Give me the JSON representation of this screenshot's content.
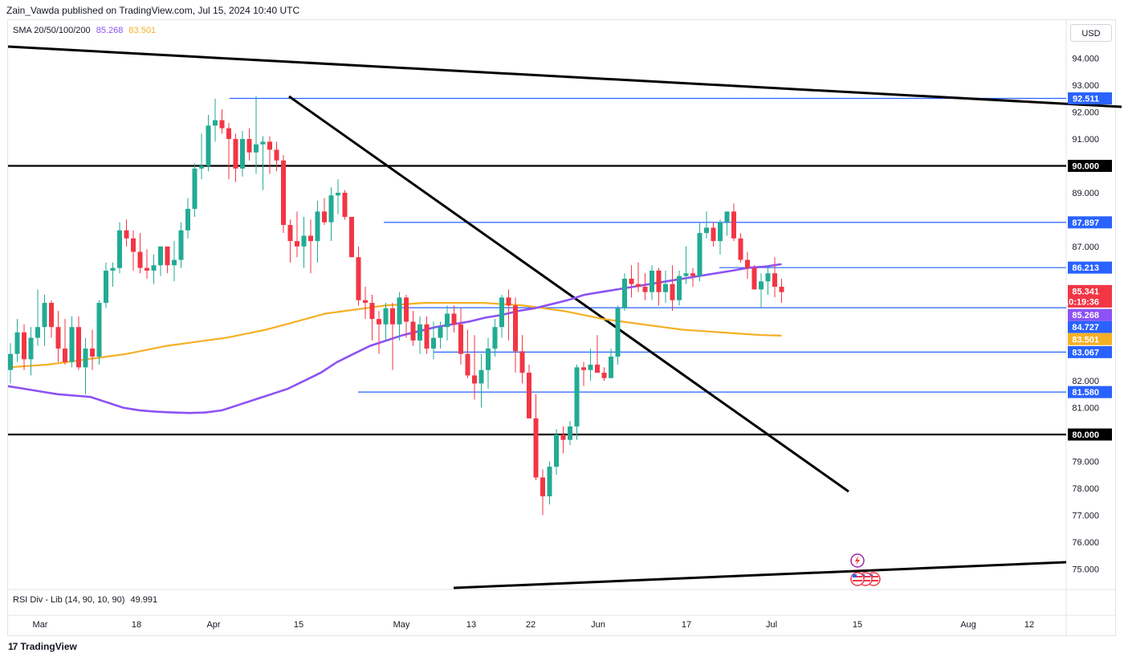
{
  "header": {
    "publisher": "Zain_Vawda published on TradingView.com, Jul 15, 2024 10:40 UTC"
  },
  "indicators": {
    "sma": {
      "label": "SMA 20/50/100/200",
      "value1": "85.268",
      "value2": "83.501",
      "color1": "#8c52f3",
      "color2": "#f5b025"
    },
    "rsi": {
      "label": "RSI Div - Lib (14, 90, 10, 90)",
      "value": "49.991"
    }
  },
  "currency_button": "USD",
  "footer": {
    "brand": "TradingView",
    "mark": "17"
  },
  "icons": [
    "lightning-icon",
    "us-flag-icon"
  ],
  "chart_data": {
    "type": "candlestick",
    "title": "",
    "x_ticks": [
      "Mar",
      "18",
      "Apr",
      "15",
      "May",
      "13",
      "22",
      "Jun",
      "17",
      "Jul",
      "15",
      "Aug",
      "12"
    ],
    "y_ticks": [
      "94.000",
      "93.000",
      "92.000",
      "91.000",
      "89.000",
      "87.000",
      "82.000",
      "81.000",
      "79.000",
      "78.000",
      "77.000",
      "76.000",
      "75.000"
    ],
    "ylim": [
      74.5,
      94.9
    ],
    "grid": false,
    "colors": {
      "up": "#22ab94",
      "down": "#f23645",
      "level": "#2962ff",
      "trend": "#000000"
    },
    "candles": [
      {
        "o": 82.4,
        "h": 83.4,
        "l": 81.9,
        "c": 83.0
      },
      {
        "o": 83.0,
        "h": 84.3,
        "l": 82.7,
        "c": 83.8
      },
      {
        "o": 83.8,
        "h": 84.1,
        "l": 82.4,
        "c": 82.8
      },
      {
        "o": 82.8,
        "h": 84.0,
        "l": 82.2,
        "c": 83.6
      },
      {
        "o": 83.6,
        "h": 85.4,
        "l": 83.3,
        "c": 84.0
      },
      {
        "o": 84.0,
        "h": 85.2,
        "l": 83.3,
        "c": 84.9
      },
      {
        "o": 84.9,
        "h": 85.0,
        "l": 83.6,
        "c": 84.0
      },
      {
        "o": 84.0,
        "h": 84.6,
        "l": 82.7,
        "c": 83.2
      },
      {
        "o": 83.2,
        "h": 84.3,
        "l": 82.6,
        "c": 82.7
      },
      {
        "o": 82.7,
        "h": 84.4,
        "l": 82.5,
        "c": 84.0
      },
      {
        "o": 84.0,
        "h": 84.4,
        "l": 82.4,
        "c": 82.5
      },
      {
        "o": 82.5,
        "h": 83.6,
        "l": 81.5,
        "c": 83.2
      },
      {
        "o": 83.2,
        "h": 83.9,
        "l": 82.4,
        "c": 82.9
      },
      {
        "o": 82.9,
        "h": 85.0,
        "l": 82.6,
        "c": 84.9
      },
      {
        "o": 84.9,
        "h": 86.4,
        "l": 84.7,
        "c": 86.1
      },
      {
        "o": 86.1,
        "h": 86.4,
        "l": 85.5,
        "c": 86.2
      },
      {
        "o": 86.2,
        "h": 87.9,
        "l": 86.0,
        "c": 87.6
      },
      {
        "o": 87.6,
        "h": 88.0,
        "l": 87.0,
        "c": 87.3
      },
      {
        "o": 87.3,
        "h": 87.6,
        "l": 86.1,
        "c": 86.8
      },
      {
        "o": 86.8,
        "h": 87.5,
        "l": 86.0,
        "c": 86.2
      },
      {
        "o": 86.2,
        "h": 86.9,
        "l": 85.8,
        "c": 86.1
      },
      {
        "o": 86.1,
        "h": 86.7,
        "l": 85.6,
        "c": 86.3
      },
      {
        "o": 86.3,
        "h": 86.9,
        "l": 85.9,
        "c": 87.0
      },
      {
        "o": 87.0,
        "h": 86.9,
        "l": 86.0,
        "c": 86.3
      },
      {
        "o": 86.3,
        "h": 87.2,
        "l": 85.7,
        "c": 86.5
      },
      {
        "o": 86.5,
        "h": 87.9,
        "l": 86.2,
        "c": 87.6
      },
      {
        "o": 87.6,
        "h": 88.8,
        "l": 87.3,
        "c": 88.4
      },
      {
        "o": 88.4,
        "h": 90.1,
        "l": 88.1,
        "c": 89.9
      },
      {
        "o": 89.9,
        "h": 91.2,
        "l": 89.5,
        "c": 90.0
      },
      {
        "o": 90.0,
        "h": 91.9,
        "l": 89.8,
        "c": 91.5
      },
      {
        "o": 91.5,
        "h": 92.5,
        "l": 90.9,
        "c": 91.7
      },
      {
        "o": 91.7,
        "h": 92.1,
        "l": 91.2,
        "c": 91.4
      },
      {
        "o": 91.4,
        "h": 91.6,
        "l": 89.5,
        "c": 91.0
      },
      {
        "o": 91.0,
        "h": 91.2,
        "l": 89.4,
        "c": 89.9
      },
      {
        "o": 89.9,
        "h": 91.3,
        "l": 89.6,
        "c": 91.0
      },
      {
        "o": 91.0,
        "h": 91.4,
        "l": 90.2,
        "c": 90.5
      },
      {
        "o": 90.5,
        "h": 92.6,
        "l": 89.7,
        "c": 90.8
      },
      {
        "o": 90.8,
        "h": 91.1,
        "l": 89.1,
        "c": 90.9
      },
      {
        "o": 90.9,
        "h": 91.1,
        "l": 89.7,
        "c": 90.6
      },
      {
        "o": 90.6,
        "h": 90.9,
        "l": 89.8,
        "c": 90.2
      },
      {
        "o": 90.2,
        "h": 90.4,
        "l": 87.5,
        "c": 87.8
      },
      {
        "o": 87.8,
        "h": 88.0,
        "l": 86.4,
        "c": 87.2
      },
      {
        "o": 87.2,
        "h": 88.3,
        "l": 86.6,
        "c": 87.0
      },
      {
        "o": 87.0,
        "h": 88.1,
        "l": 86.2,
        "c": 87.4
      },
      {
        "o": 87.4,
        "h": 88.0,
        "l": 86.0,
        "c": 87.2
      },
      {
        "o": 87.2,
        "h": 88.7,
        "l": 86.4,
        "c": 88.3
      },
      {
        "o": 88.3,
        "h": 88.8,
        "l": 87.8,
        "c": 87.9
      },
      {
        "o": 87.9,
        "h": 89.2,
        "l": 87.2,
        "c": 88.9
      },
      {
        "o": 88.9,
        "h": 89.5,
        "l": 88.2,
        "c": 89.0
      },
      {
        "o": 89.0,
        "h": 89.1,
        "l": 88.0,
        "c": 88.1
      },
      {
        "o": 88.1,
        "h": 88.1,
        "l": 86.6,
        "c": 86.6
      },
      {
        "o": 86.6,
        "h": 87.0,
        "l": 84.8,
        "c": 85.0
      },
      {
        "o": 85.0,
        "h": 85.5,
        "l": 84.3,
        "c": 84.9
      },
      {
        "o": 84.9,
        "h": 85.2,
        "l": 83.5,
        "c": 84.3
      },
      {
        "o": 84.3,
        "h": 84.6,
        "l": 83.0,
        "c": 84.1
      },
      {
        "o": 84.1,
        "h": 84.9,
        "l": 83.5,
        "c": 84.7
      },
      {
        "o": 84.7,
        "h": 84.9,
        "l": 82.4,
        "c": 84.1
      },
      {
        "o": 84.1,
        "h": 85.3,
        "l": 83.5,
        "c": 85.1
      },
      {
        "o": 85.1,
        "h": 85.2,
        "l": 83.6,
        "c": 84.2
      },
      {
        "o": 84.2,
        "h": 84.6,
        "l": 83.3,
        "c": 83.5
      },
      {
        "o": 83.5,
        "h": 84.4,
        "l": 83.0,
        "c": 84.1
      },
      {
        "o": 84.1,
        "h": 84.4,
        "l": 83.0,
        "c": 83.2
      },
      {
        "o": 83.2,
        "h": 84.2,
        "l": 82.8,
        "c": 83.6
      },
      {
        "o": 83.6,
        "h": 84.2,
        "l": 83.2,
        "c": 84.0
      },
      {
        "o": 84.0,
        "h": 84.8,
        "l": 83.5,
        "c": 84.5
      },
      {
        "o": 84.5,
        "h": 84.8,
        "l": 83.8,
        "c": 84.1
      },
      {
        "o": 84.1,
        "h": 84.7,
        "l": 82.6,
        "c": 83.0
      },
      {
        "o": 83.0,
        "h": 83.9,
        "l": 82.1,
        "c": 82.2
      },
      {
        "o": 82.2,
        "h": 83.7,
        "l": 81.3,
        "c": 81.9
      },
      {
        "o": 81.9,
        "h": 83.0,
        "l": 81.0,
        "c": 82.4
      },
      {
        "o": 82.4,
        "h": 83.6,
        "l": 81.7,
        "c": 83.2
      },
      {
        "o": 83.2,
        "h": 84.3,
        "l": 82.9,
        "c": 84.0
      },
      {
        "o": 84.0,
        "h": 85.2,
        "l": 83.6,
        "c": 85.1
      },
      {
        "o": 85.1,
        "h": 85.4,
        "l": 83.5,
        "c": 84.8
      },
      {
        "o": 84.8,
        "h": 85.1,
        "l": 82.3,
        "c": 83.1
      },
      {
        "o": 83.1,
        "h": 83.7,
        "l": 81.9,
        "c": 82.3
      },
      {
        "o": 82.3,
        "h": 82.6,
        "l": 80.7,
        "c": 80.6
      },
      {
        "o": 80.6,
        "h": 81.5,
        "l": 78.3,
        "c": 78.4
      },
      {
        "o": 78.4,
        "h": 78.7,
        "l": 77.0,
        "c": 77.7
      },
      {
        "o": 77.7,
        "h": 79.0,
        "l": 77.4,
        "c": 78.8
      },
      {
        "o": 78.8,
        "h": 80.2,
        "l": 78.5,
        "c": 80.0
      },
      {
        "o": 80.0,
        "h": 80.3,
        "l": 79.3,
        "c": 79.8
      },
      {
        "o": 79.8,
        "h": 80.5,
        "l": 79.6,
        "c": 80.3
      },
      {
        "o": 80.3,
        "h": 82.6,
        "l": 79.8,
        "c": 82.5
      },
      {
        "o": 82.5,
        "h": 82.7,
        "l": 81.8,
        "c": 82.4
      },
      {
        "o": 82.4,
        "h": 83.2,
        "l": 82.0,
        "c": 82.6
      },
      {
        "o": 82.6,
        "h": 83.7,
        "l": 82.3,
        "c": 82.3
      },
      {
        "o": 82.3,
        "h": 82.5,
        "l": 82.0,
        "c": 82.1
      },
      {
        "o": 82.1,
        "h": 83.2,
        "l": 82.1,
        "c": 82.9
      },
      {
        "o": 82.9,
        "h": 84.8,
        "l": 82.6,
        "c": 84.7
      },
      {
        "o": 84.7,
        "h": 86.0,
        "l": 84.6,
        "c": 85.8
      },
      {
        "o": 85.8,
        "h": 86.3,
        "l": 85.1,
        "c": 85.6
      },
      {
        "o": 85.6,
        "h": 86.4,
        "l": 85.3,
        "c": 85.5
      },
      {
        "o": 85.5,
        "h": 86.0,
        "l": 85.0,
        "c": 85.3
      },
      {
        "o": 85.3,
        "h": 86.3,
        "l": 85.0,
        "c": 86.1
      },
      {
        "o": 86.1,
        "h": 86.2,
        "l": 84.8,
        "c": 85.3
      },
      {
        "o": 85.3,
        "h": 86.1,
        "l": 84.9,
        "c": 85.6
      },
      {
        "o": 85.6,
        "h": 86.3,
        "l": 84.6,
        "c": 85.0
      },
      {
        "o": 85.0,
        "h": 86.1,
        "l": 84.8,
        "c": 85.9
      },
      {
        "o": 85.9,
        "h": 87.0,
        "l": 85.6,
        "c": 86.0
      },
      {
        "o": 86.0,
        "h": 86.2,
        "l": 85.5,
        "c": 85.9
      },
      {
        "o": 85.9,
        "h": 87.9,
        "l": 85.7,
        "c": 87.5
      },
      {
        "o": 87.5,
        "h": 88.3,
        "l": 87.3,
        "c": 87.7
      },
      {
        "o": 87.7,
        "h": 87.9,
        "l": 87.0,
        "c": 87.2
      },
      {
        "o": 87.2,
        "h": 88.0,
        "l": 86.7,
        "c": 87.9
      },
      {
        "o": 87.9,
        "h": 88.2,
        "l": 87.4,
        "c": 88.3
      },
      {
        "o": 88.3,
        "h": 88.6,
        "l": 87.2,
        "c": 87.3
      },
      {
        "o": 87.3,
        "h": 87.5,
        "l": 86.4,
        "c": 86.5
      },
      {
        "o": 86.5,
        "h": 86.8,
        "l": 85.8,
        "c": 86.2
      },
      {
        "o": 86.2,
        "h": 86.3,
        "l": 85.4,
        "c": 85.4
      },
      {
        "o": 85.4,
        "h": 86.0,
        "l": 84.7,
        "c": 85.7
      },
      {
        "o": 85.7,
        "h": 86.3,
        "l": 85.2,
        "c": 86.0
      },
      {
        "o": 86.0,
        "h": 86.6,
        "l": 85.1,
        "c": 85.5
      },
      {
        "o": 85.5,
        "h": 85.8,
        "l": 84.9,
        "c": 85.3
      }
    ],
    "sma_100": [
      81.8,
      81.7,
      81.6,
      81.5,
      81.45,
      81.4,
      81.2,
      81.0,
      80.9,
      80.85,
      80.82,
      80.8,
      80.82,
      80.9,
      81.1,
      81.3,
      81.5,
      81.7,
      82.0,
      82.3,
      82.7,
      83.0,
      83.3,
      83.5,
      83.7,
      83.85,
      84.0,
      84.1,
      84.2,
      84.35,
      84.45,
      84.6,
      84.7,
      84.85,
      85.0,
      85.2,
      85.3,
      85.4,
      85.5,
      85.6,
      85.7,
      85.8,
      85.9,
      86.0,
      86.1,
      86.21,
      86.25,
      86.34
    ],
    "sma_200": [
      82.5,
      82.55,
      82.6,
      82.7,
      82.8,
      82.9,
      83.0,
      83.15,
      83.3,
      83.4,
      83.5,
      83.6,
      83.75,
      83.9,
      84.1,
      84.3,
      84.5,
      84.6,
      84.7,
      84.8,
      84.85,
      84.9,
      84.9,
      84.9,
      84.9,
      84.85,
      84.8,
      84.7,
      84.6,
      84.45,
      84.3,
      84.2,
      84.1,
      84.0,
      83.9,
      83.85,
      83.8,
      83.75,
      83.7,
      83.68
    ],
    "levels": [
      {
        "label": "92.511",
        "value": 92.511,
        "bg": "#2962ff"
      },
      {
        "label": "90.000",
        "value": 90.0,
        "bg": "#000000"
      },
      {
        "label": "87.897",
        "value": 87.897,
        "bg": "#2962ff"
      },
      {
        "label": "86.213",
        "value": 86.213,
        "bg": "#2962ff"
      },
      {
        "label": "83.067",
        "value": 83.067,
        "bg": "#2962ff"
      },
      {
        "label": "81.580",
        "value": 81.58,
        "bg": "#2962ff"
      },
      {
        "label": "80.000",
        "value": 80.0,
        "bg": "#000000"
      }
    ],
    "price_tags": [
      {
        "label": "85.341",
        "value": 85.341,
        "bg": "#f23645"
      },
      {
        "label": "10:19:36",
        "value": 84.95,
        "bg": "#f23645"
      },
      {
        "label": "85.268",
        "value": 84.45,
        "bg": "#8c52f3"
      },
      {
        "label": "84.727",
        "value": 84.0,
        "bg": "#2962ff"
      },
      {
        "label": "83.501",
        "value": 83.55,
        "bg": "#f5b025"
      }
    ]
  }
}
